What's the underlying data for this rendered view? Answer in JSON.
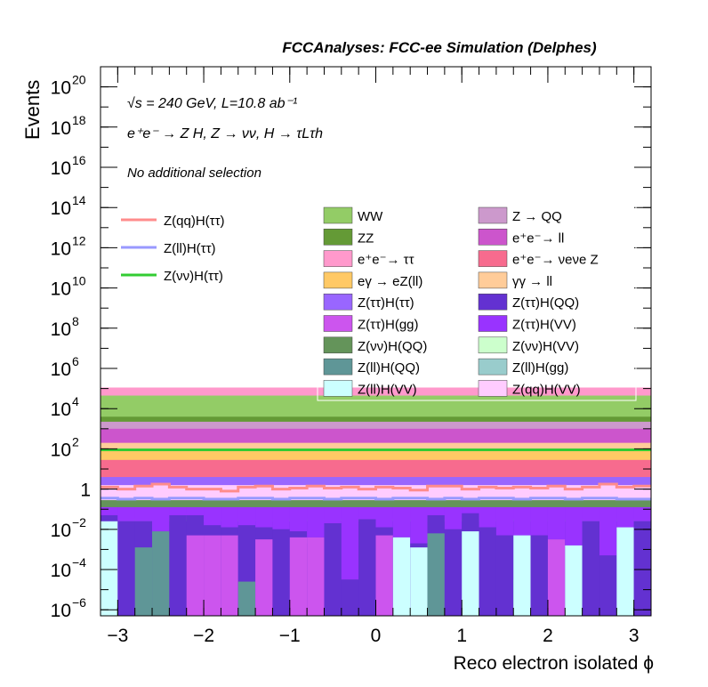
{
  "chart_data": {
    "type": "bar",
    "title": "FCCAnalyses: FCC-ee Simulation (Delphes)",
    "xlabel": "Reco electron isolated ϕ",
    "ylabel": "Events",
    "ylog": true,
    "xlim": [
      -3.2,
      3.2
    ],
    "ylim_exp": [
      -6.3,
      21.0
    ],
    "x_ticks": [
      {
        "v": -3,
        "label": "−3"
      },
      {
        "v": -2,
        "label": "−2"
      },
      {
        "v": -1,
        "label": "−1"
      },
      {
        "v": 0,
        "label": "0"
      },
      {
        "v": 1,
        "label": "1"
      },
      {
        "v": 2,
        "label": "2"
      },
      {
        "v": 3,
        "label": "3"
      }
    ],
    "y_ticks": [
      {
        "e": -6,
        "base": "10",
        "sup": "−6"
      },
      {
        "e": -4,
        "base": "10",
        "sup": "−4"
      },
      {
        "e": -2,
        "base": "10",
        "sup": "−2"
      },
      {
        "e": 0,
        "base": "1",
        "sup": ""
      },
      {
        "e": 2,
        "base": "10",
        "sup": "2"
      },
      {
        "e": 4,
        "base": "10",
        "sup": "4"
      },
      {
        "e": 6,
        "base": "10",
        "sup": "6"
      },
      {
        "e": 8,
        "base": "10",
        "sup": "8"
      },
      {
        "e": 10,
        "base": "10",
        "sup": "10"
      },
      {
        "e": 12,
        "base": "10",
        "sup": "12"
      },
      {
        "e": 14,
        "base": "10",
        "sup": "14"
      },
      {
        "e": 16,
        "base": "10",
        "sup": "16"
      },
      {
        "e": 18,
        "base": "10",
        "sup": "18"
      },
      {
        "e": 20,
        "base": "10",
        "sup": "20"
      }
    ],
    "annotations": {
      "energy_lumi": "√s = 240 GeV, L=10.8 ab⁻¹",
      "process": "e⁺e⁻ → Z H, Z → νν, H → τLτh",
      "selection": "No additional selection"
    },
    "n_bins": 32,
    "bin_width": 0.2,
    "stack_log10_levels_bottom_to_top": [
      {
        "name": "Z(ττ)H(QQ)",
        "color": "#6331d1",
        "top": -1.6,
        "note": "floor band, per-bin jagged"
      },
      {
        "name": "Z(ll)H(QQ)",
        "color": "#5f9697",
        "top": -1.5
      },
      {
        "name": "Z(ll)H(VV)",
        "color": "#ccffff",
        "top": -1.6
      },
      {
        "name": "Z(ττ)H(gg)",
        "color": "#cc55ee",
        "top": -1.7
      },
      {
        "name": "Z(ττ)H(VV)",
        "color": "#9933ff",
        "top": -0.9
      },
      {
        "name": "Z(νν)H(QQ)",
        "color": "#64945a",
        "top": -0.55
      },
      {
        "name": "Z(qq)H(VV)",
        "color": "#ffccff",
        "top": 0.2
      },
      {
        "name": "Z(ττ)H(ττ)",
        "color": "#9966ff",
        "top": 0.6
      },
      {
        "name": "e⁺e⁻→ νeνe Z",
        "color": "#f76b8e",
        "top": 1.45
      },
      {
        "name": "eγ → eZ(ll)",
        "color": "#ffc965",
        "top": 1.95
      },
      {
        "name": "γγ → ll",
        "color": "#ffcc99",
        "top": 2.3
      },
      {
        "name": "e⁺e⁻→ ll",
        "color": "#cc55cc",
        "top": 3.0
      },
      {
        "name": "Z → QQ",
        "color": "#cc99cc",
        "top": 3.35
      },
      {
        "name": "ZZ",
        "color": "#649a36",
        "top": 3.6
      },
      {
        "name": "WW",
        "color": "#93cc66",
        "top": 4.65
      },
      {
        "name": "e⁺e⁻→ ττ",
        "color": "#ff99cc",
        "top": 5.05
      }
    ],
    "floor_bins": {
      "note": "per-bin log10 tops of the four lowest stacked components (-6.3 = empty)",
      "tautauQQ": [
        -1.3,
        -1.6,
        -1.6,
        -2.9,
        -1.3,
        -1.3,
        -1.8,
        -1.9,
        -1.8,
        -1.9,
        -2.0,
        -2.1,
        -2.7,
        -1.7,
        -4.5,
        -1.5,
        -1.9,
        -2.4,
        -2.7,
        -1.3,
        -2.0,
        -1.2,
        -1.9,
        -2.3,
        -2.5,
        -2.3,
        -4.6,
        -2.9,
        -1.6,
        -3.3,
        -1.9,
        -1.6
      ],
      "llQQ": [
        -6.3,
        -6.3,
        -2.9,
        -2.1,
        -6.3,
        -6.3,
        -6.3,
        -6.3,
        -4.6,
        -6.3,
        -6.3,
        -6.3,
        -6.3,
        -6.3,
        -6.3,
        -6.3,
        -6.3,
        -6.3,
        -6.3,
        -2.2,
        -6.3,
        -6.3,
        -6.3,
        -6.3,
        -4.5,
        -6.3,
        -6.3,
        -6.3,
        -6.3,
        -6.3,
        -6.3,
        -6.3
      ],
      "llVV": [
        -1.6,
        -6.3,
        -6.3,
        -6.3,
        -6.3,
        -6.3,
        -6.3,
        -6.3,
        -6.3,
        -6.3,
        -6.3,
        -6.3,
        -6.3,
        -6.3,
        -6.3,
        -6.3,
        -6.3,
        -2.4,
        -2.9,
        -6.3,
        -6.3,
        -2.1,
        -6.3,
        -6.3,
        -2.3,
        -6.3,
        -6.3,
        -2.8,
        -6.3,
        -6.3,
        -1.9,
        -6.3
      ],
      "tautauGG": [
        -6.3,
        -6.3,
        -6.3,
        -6.3,
        -6.3,
        -2.3,
        -2.3,
        -2.3,
        -6.3,
        -2.5,
        -6.3,
        -2.4,
        -2.4,
        -6.3,
        -6.3,
        -6.3,
        -2.3,
        -6.3,
        -6.3,
        -6.3,
        -6.3,
        -6.3,
        -6.3,
        -6.3,
        -6.3,
        -6.3,
        -2.5,
        -6.3,
        -6.3,
        -6.3,
        -6.3,
        -6.3
      ]
    },
    "series": [
      {
        "name": "Z(qq)H(ττ)",
        "color": "#ff8c8c",
        "values_log10": [
          0.1,
          0.0,
          0.15,
          0.25,
          0.1,
          0.0,
          0.0,
          -0.1,
          0.1,
          0.15,
          0.0,
          0.05,
          0.15,
          0.05,
          0.1,
          0.0,
          0.1,
          0.05,
          -0.05,
          0.15,
          0.15,
          0.0,
          0.1,
          0.05,
          0.1,
          0.05,
          0.15,
          0.0,
          0.1,
          0.25,
          0.1,
          0.15
        ]
      },
      {
        "name": "Z(ll)H(ττ)",
        "color": "#9999ff",
        "values_log10": [
          -0.45,
          -0.5,
          -0.45,
          -0.5,
          -0.45,
          -0.45,
          -0.5,
          -0.5,
          -0.45,
          -0.45,
          -0.5,
          -0.45,
          -0.45,
          -0.5,
          -0.45,
          -0.45,
          -0.5,
          -0.45,
          -0.45,
          -0.5,
          -0.45,
          -0.5,
          -0.45,
          -0.45,
          -0.5,
          -0.45,
          -0.45,
          -0.5,
          -0.45,
          -0.45,
          -0.5,
          -0.5
        ]
      },
      {
        "name": "Z(νν)H(ττ)",
        "color": "#33cc33",
        "values_log10": [
          1.95,
          1.95,
          1.95,
          1.95,
          1.95,
          1.95,
          1.95,
          1.95,
          1.95,
          1.95,
          1.95,
          1.95,
          1.95,
          1.95,
          1.95,
          1.95,
          1.95,
          1.95,
          1.95,
          1.95,
          1.95,
          1.95,
          1.95,
          1.95,
          1.95,
          1.95,
          1.95,
          1.95,
          1.95,
          1.95,
          1.95,
          1.95
        ]
      }
    ],
    "legend_lines": [
      "Z(qq)H(ττ)",
      "Z(ll)H(ττ)",
      "Z(νν)H(ττ)"
    ],
    "legend_stack_col1": [
      {
        "label": "WW",
        "color": "#93cc66"
      },
      {
        "label": "ZZ",
        "color": "#649a36"
      },
      {
        "label": "e⁺e⁻→ ττ",
        "color": "#ff99cc"
      },
      {
        "label": "eγ → eZ(ll)",
        "color": "#ffc965"
      },
      {
        "label": "Z(ττ)H(ττ)",
        "color": "#9966ff"
      },
      {
        "label": "Z(ττ)H(gg)",
        "color": "#cc55ee"
      },
      {
        "label": "Z(νν)H(QQ)",
        "color": "#64945a"
      },
      {
        "label": "Z(ll)H(QQ)",
        "color": "#5f9697"
      },
      {
        "label": "Z(ll)H(VV)",
        "color": "#ccffff"
      }
    ],
    "legend_stack_col2": [
      {
        "label": "Z → QQ",
        "color": "#cc99cc"
      },
      {
        "label": "e⁺e⁻→ ll",
        "color": "#cc55cc"
      },
      {
        "label": "e⁺e⁻→ νeνe Z",
        "color": "#f76b8e"
      },
      {
        "label": "γγ → ll",
        "color": "#ffcc99"
      },
      {
        "label": "Z(ττ)H(QQ)",
        "color": "#6331d1"
      },
      {
        "label": "Z(ττ)H(VV)",
        "color": "#9933ff"
      },
      {
        "label": "Z(νν)H(VV)",
        "color": "#ccffcc"
      },
      {
        "label": "Z(ll)H(gg)",
        "color": "#99cccc"
      },
      {
        "label": "Z(qq)H(VV)",
        "color": "#ffccff"
      }
    ]
  }
}
